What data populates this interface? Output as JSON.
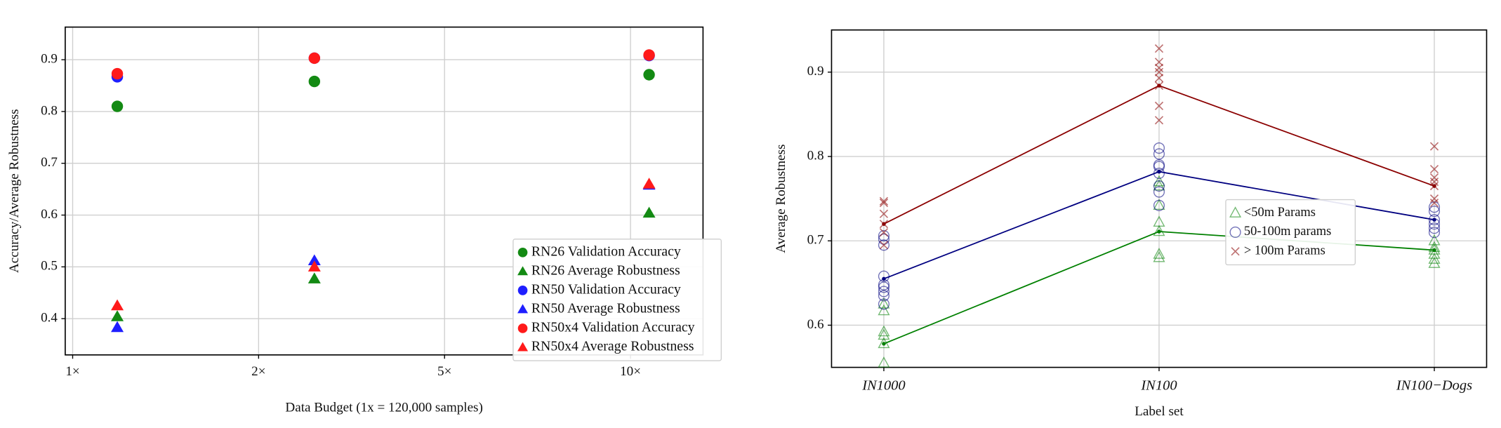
{
  "chart_data": [
    {
      "type": "scatter",
      "x_label": "Data Budget (1x = 120,000 samples)",
      "y_label": "Accuracy/Average Robustness",
      "x": [
        0.24,
        1.3,
        3.1
      ],
      "xlim": [
        -0.04,
        3.39
      ],
      "xticks": [
        {
          "value": 0,
          "label": "1×"
        },
        {
          "value": 1,
          "label": "2×"
        },
        {
          "value": 2,
          "label": "5×"
        },
        {
          "value": 3,
          "label": "10×"
        }
      ],
      "ylim": [
        0.33,
        0.963
      ],
      "yticks": [
        0.4,
        0.5,
        0.6,
        0.7,
        0.8,
        0.9
      ],
      "grid": true,
      "legend": "lower right",
      "series": [
        {
          "name": "RN26 Validation Accuracy",
          "color": "#138a13",
          "marker": "circle",
          "values": [
            0.81,
            0.858,
            0.871
          ]
        },
        {
          "name": "RN26 Average Robustness",
          "color": "#138a13",
          "marker": "triangle",
          "values": [
            0.404,
            0.477,
            0.604
          ]
        },
        {
          "name": "RN50 Validation Accuracy",
          "color": "#1f1fff",
          "marker": "circle",
          "values": [
            0.867,
            0.903,
            0.908
          ]
        },
        {
          "name": "RN50 Average Robustness",
          "color": "#1f1fff",
          "marker": "triangle",
          "values": [
            0.383,
            0.512,
            0.658
          ]
        },
        {
          "name": "RN50x4 Validation Accuracy",
          "color": "#ff1a1a",
          "marker": "circle",
          "values": [
            0.873,
            0.903,
            0.909
          ]
        },
        {
          "name": "RN50x4 Average Robustness",
          "color": "#ff1a1a",
          "marker": "triangle",
          "values": [
            0.425,
            0.5,
            0.66
          ]
        }
      ]
    },
    {
      "type": "line",
      "x_label": "Label set",
      "y_label": "Average Robustness",
      "categories": [
        "IN1000",
        "IN100",
        "IN100−Dogs"
      ],
      "ylim": [
        0.55,
        0.95
      ],
      "yticks": [
        0.6,
        0.7,
        0.8,
        0.9
      ],
      "grid": true,
      "legend": "center right",
      "series": [
        {
          "name": "<50m Params",
          "color": "#008000",
          "marker": "triangle-open",
          "values": [
            0.578,
            0.711,
            0.689
          ],
          "points": [
            [
              0.555,
              0.578,
              0.588,
              0.592,
              0.617,
              0.625
            ],
            [
              0.68,
              0.684,
              0.711,
              0.722,
              0.742,
              0.765,
              0.77
            ],
            [
              0.673,
              0.678,
              0.684,
              0.689,
              0.692,
              0.7
            ]
          ]
        },
        {
          "name": "50-100m params",
          "color": "#000080",
          "marker": "circle-open",
          "values": [
            0.655,
            0.782,
            0.725
          ],
          "points": [
            [
              0.625,
              0.635,
              0.64,
              0.645,
              0.648,
              0.658,
              0.695,
              0.702,
              0.706
            ],
            [
              0.742,
              0.758,
              0.765,
              0.78,
              0.788,
              0.79,
              0.803,
              0.81
            ],
            [
              0.71,
              0.715,
              0.72,
              0.725,
              0.735,
              0.74
            ]
          ]
        },
        {
          "name": "> 100m Params",
          "color": "#8b0000",
          "marker": "x",
          "values": [
            0.72,
            0.884,
            0.765
          ],
          "points": [
            [
              0.695,
              0.71,
              0.72,
              0.732,
              0.745,
              0.747
            ],
            [
              0.843,
              0.86,
              0.884,
              0.893,
              0.9,
              0.905,
              0.912,
              0.928
            ],
            [
              0.745,
              0.75,
              0.765,
              0.77,
              0.775,
              0.785,
              0.812
            ]
          ]
        }
      ]
    }
  ]
}
